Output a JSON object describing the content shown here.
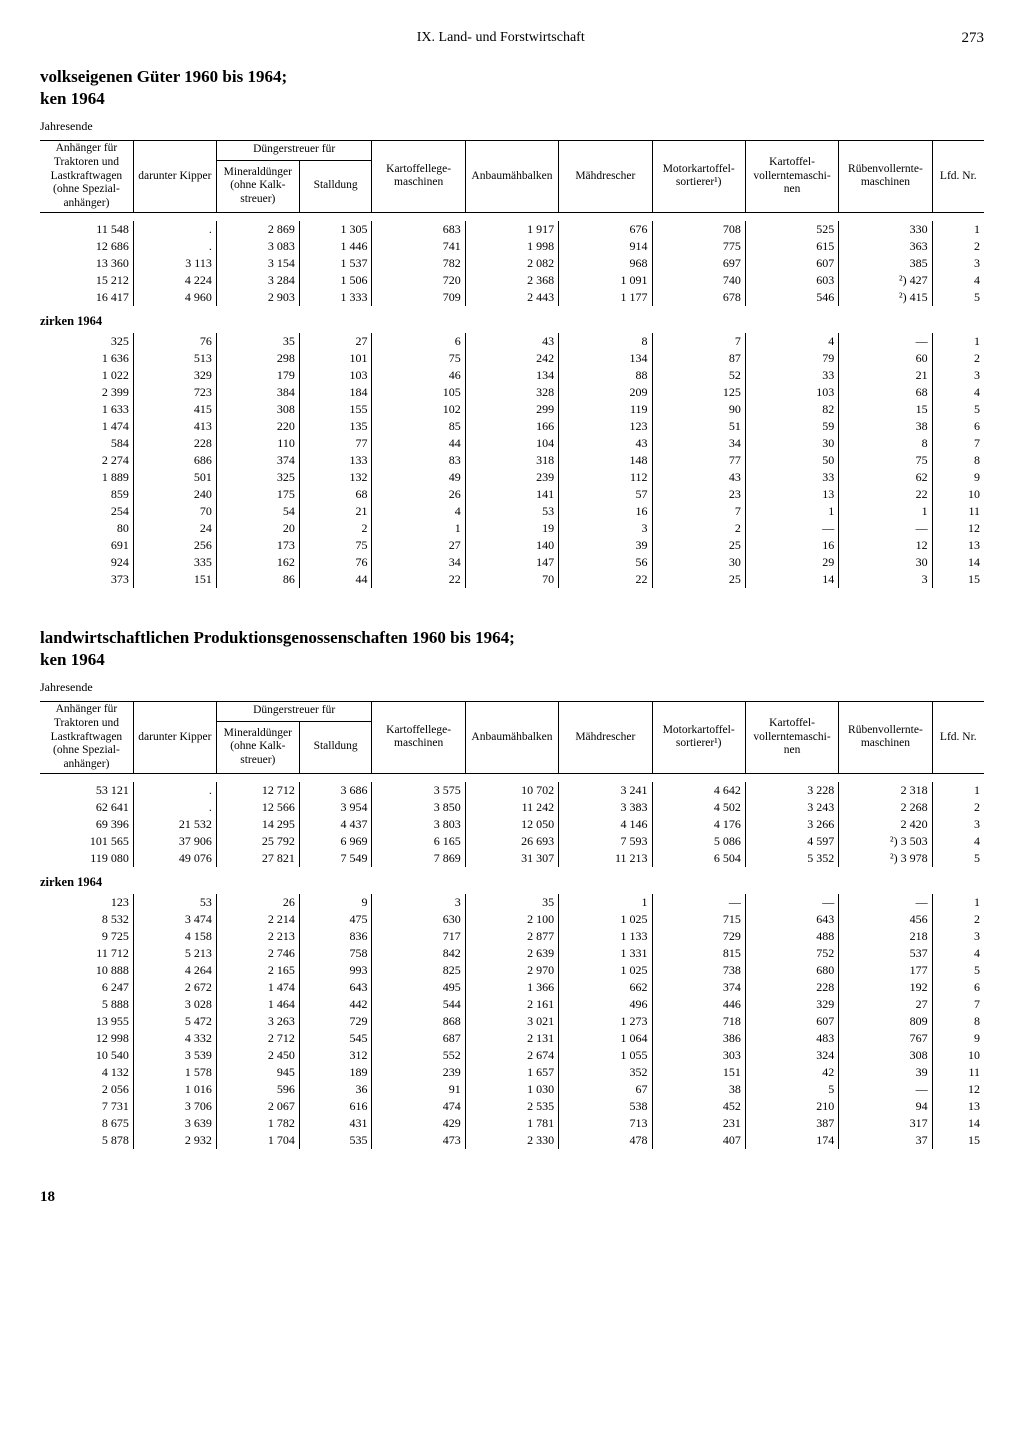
{
  "chapter": "IX. Land- und Forstwirtschaft",
  "page_number": "273",
  "page_footer": "18",
  "columns": [
    "Anhänger für Trak­toren und Lastkraft­wagen (ohne Spezial­anhänger)",
    "darunter Kipper",
    "Düngerstreuer für",
    "Mineral­dünger (ohne Kalk­streuer)",
    "Stall­dung",
    "Kartoffel­lege­maschinen",
    "Anbau­mäh­balken",
    "Mäh­drescher",
    "Motor­kartoffel­sortierer¹)",
    "Kartoffel­vollernte­maschi­nen",
    "Rüben­vollernte­maschinen",
    "Lfd. Nr."
  ],
  "table1": {
    "title": "volkseigenen Güter 1960 bis 1964;",
    "subtitle": "ken 1964",
    "period": "Jahresende",
    "block1": [
      [
        "11 548",
        ".",
        "2 869",
        "1 305",
        "683",
        "1 917",
        "676",
        "708",
        "525",
        "330",
        "1"
      ],
      [
        "12 686",
        ".",
        "3 083",
        "1 446",
        "741",
        "1 998",
        "914",
        "775",
        "615",
        "363",
        "2"
      ],
      [
        "13 360",
        "3 113",
        "3 154",
        "1 537",
        "782",
        "2 082",
        "968",
        "697",
        "607",
        "385",
        "3"
      ],
      [
        "15 212",
        "4 224",
        "3 284",
        "1 506",
        "720",
        "2 368",
        "1 091",
        "740",
        "603",
        "²) 427",
        "4"
      ],
      [
        "16 417",
        "4 960",
        "2 903",
        "1 333",
        "709",
        "2 443",
        "1 177",
        "678",
        "546",
        "²) 415",
        "5"
      ]
    ],
    "section": "zirken 1964",
    "block2": [
      [
        "325",
        "76",
        "35",
        "27",
        "6",
        "43",
        "8",
        "7",
        "4",
        "—",
        "1"
      ],
      [
        "1 636",
        "513",
        "298",
        "101",
        "75",
        "242",
        "134",
        "87",
        "79",
        "60",
        "2"
      ],
      [
        "1 022",
        "329",
        "179",
        "103",
        "46",
        "134",
        "88",
        "52",
        "33",
        "21",
        "3"
      ],
      [
        "2 399",
        "723",
        "384",
        "184",
        "105",
        "328",
        "209",
        "125",
        "103",
        "68",
        "4"
      ],
      [
        "1 633",
        "415",
        "308",
        "155",
        "102",
        "299",
        "119",
        "90",
        "82",
        "15",
        "5"
      ],
      [
        "1 474",
        "413",
        "220",
        "135",
        "85",
        "166",
        "123",
        "51",
        "59",
        "38",
        "6"
      ],
      [
        "584",
        "228",
        "110",
        "77",
        "44",
        "104",
        "43",
        "34",
        "30",
        "8",
        "7"
      ],
      [
        "2 274",
        "686",
        "374",
        "133",
        "83",
        "318",
        "148",
        "77",
        "50",
        "75",
        "8"
      ],
      [
        "1 889",
        "501",
        "325",
        "132",
        "49",
        "239",
        "112",
        "43",
        "33",
        "62",
        "9"
      ],
      [
        "859",
        "240",
        "175",
        "68",
        "26",
        "141",
        "57",
        "23",
        "13",
        "22",
        "10"
      ],
      [
        "254",
        "70",
        "54",
        "21",
        "4",
        "53",
        "16",
        "7",
        "1",
        "1",
        "11"
      ],
      [
        "80",
        "24",
        "20",
        "2",
        "1",
        "19",
        "3",
        "2",
        "—",
        "—",
        "12"
      ],
      [
        "691",
        "256",
        "173",
        "75",
        "27",
        "140",
        "39",
        "25",
        "16",
        "12",
        "13"
      ],
      [
        "924",
        "335",
        "162",
        "76",
        "34",
        "147",
        "56",
        "30",
        "29",
        "30",
        "14"
      ],
      [
        "373",
        "151",
        "86",
        "44",
        "22",
        "70",
        "22",
        "25",
        "14",
        "3",
        "15"
      ]
    ]
  },
  "table2": {
    "title": "landwirtschaftlichen Produktionsgenossenschaften 1960 bis 1964;",
    "subtitle": "ken 1964",
    "period": "Jahresende",
    "block1": [
      [
        "53 121",
        ".",
        "12 712",
        "3 686",
        "3 575",
        "10 702",
        "3 241",
        "4 642",
        "3 228",
        "2 318",
        "1"
      ],
      [
        "62 641",
        ".",
        "12 566",
        "3 954",
        "3 850",
        "11 242",
        "3 383",
        "4 502",
        "3 243",
        "2 268",
        "2"
      ],
      [
        "69 396",
        "21 532",
        "14 295",
        "4 437",
        "3 803",
        "12 050",
        "4 146",
        "4 176",
        "3 266",
        "2 420",
        "3"
      ],
      [
        "101 565",
        "37 906",
        "25 792",
        "6 969",
        "6 165",
        "26 693",
        "7 593",
        "5 086",
        "4 597",
        "²) 3 503",
        "4"
      ],
      [
        "119 080",
        "49 076",
        "27 821",
        "7 549",
        "7 869",
        "31 307",
        "11 213",
        "6 504",
        "5 352",
        "²) 3 978",
        "5"
      ]
    ],
    "section": "zirken 1964",
    "block2": [
      [
        "123",
        "53",
        "26",
        "9",
        "3",
        "35",
        "1",
        "—",
        "—",
        "—",
        "1"
      ],
      [
        "8 532",
        "3 474",
        "2 214",
        "475",
        "630",
        "2 100",
        "1 025",
        "715",
        "643",
        "456",
        "2"
      ],
      [
        "9 725",
        "4 158",
        "2 213",
        "836",
        "717",
        "2 877",
        "1 133",
        "729",
        "488",
        "218",
        "3"
      ],
      [
        "11 712",
        "5 213",
        "2 746",
        "758",
        "842",
        "2 639",
        "1 331",
        "815",
        "752",
        "537",
        "4"
      ],
      [
        "10 888",
        "4 264",
        "2 165",
        "993",
        "825",
        "2 970",
        "1 025",
        "738",
        "680",
        "177",
        "5"
      ],
      [
        "6 247",
        "2 672",
        "1 474",
        "643",
        "495",
        "1 366",
        "662",
        "374",
        "228",
        "192",
        "6"
      ],
      [
        "5 888",
        "3 028",
        "1 464",
        "442",
        "544",
        "2 161",
        "496",
        "446",
        "329",
        "27",
        "7"
      ],
      [
        "13 955",
        "5 472",
        "3 263",
        "729",
        "868",
        "3 021",
        "1 273",
        "718",
        "607",
        "809",
        "8"
      ],
      [
        "12 998",
        "4 332",
        "2 712",
        "545",
        "687",
        "2 131",
        "1 064",
        "386",
        "483",
        "767",
        "9"
      ],
      [
        "10 540",
        "3 539",
        "2 450",
        "312",
        "552",
        "2 674",
        "1 055",
        "303",
        "324",
        "308",
        "10"
      ],
      [
        "4 132",
        "1 578",
        "945",
        "189",
        "239",
        "1 657",
        "352",
        "151",
        "42",
        "39",
        "11"
      ],
      [
        "2 056",
        "1 016",
        "596",
        "36",
        "91",
        "1 030",
        "67",
        "38",
        "5",
        "—",
        "12"
      ],
      [
        "7 731",
        "3 706",
        "2 067",
        "616",
        "474",
        "2 535",
        "538",
        "452",
        "210",
        "94",
        "13"
      ],
      [
        "8 675",
        "3 639",
        "1 782",
        "431",
        "429",
        "1 781",
        "713",
        "231",
        "387",
        "317",
        "14"
      ],
      [
        "5 878",
        "2 932",
        "1 704",
        "535",
        "473",
        "2 330",
        "478",
        "407",
        "174",
        "37",
        "15"
      ]
    ]
  }
}
